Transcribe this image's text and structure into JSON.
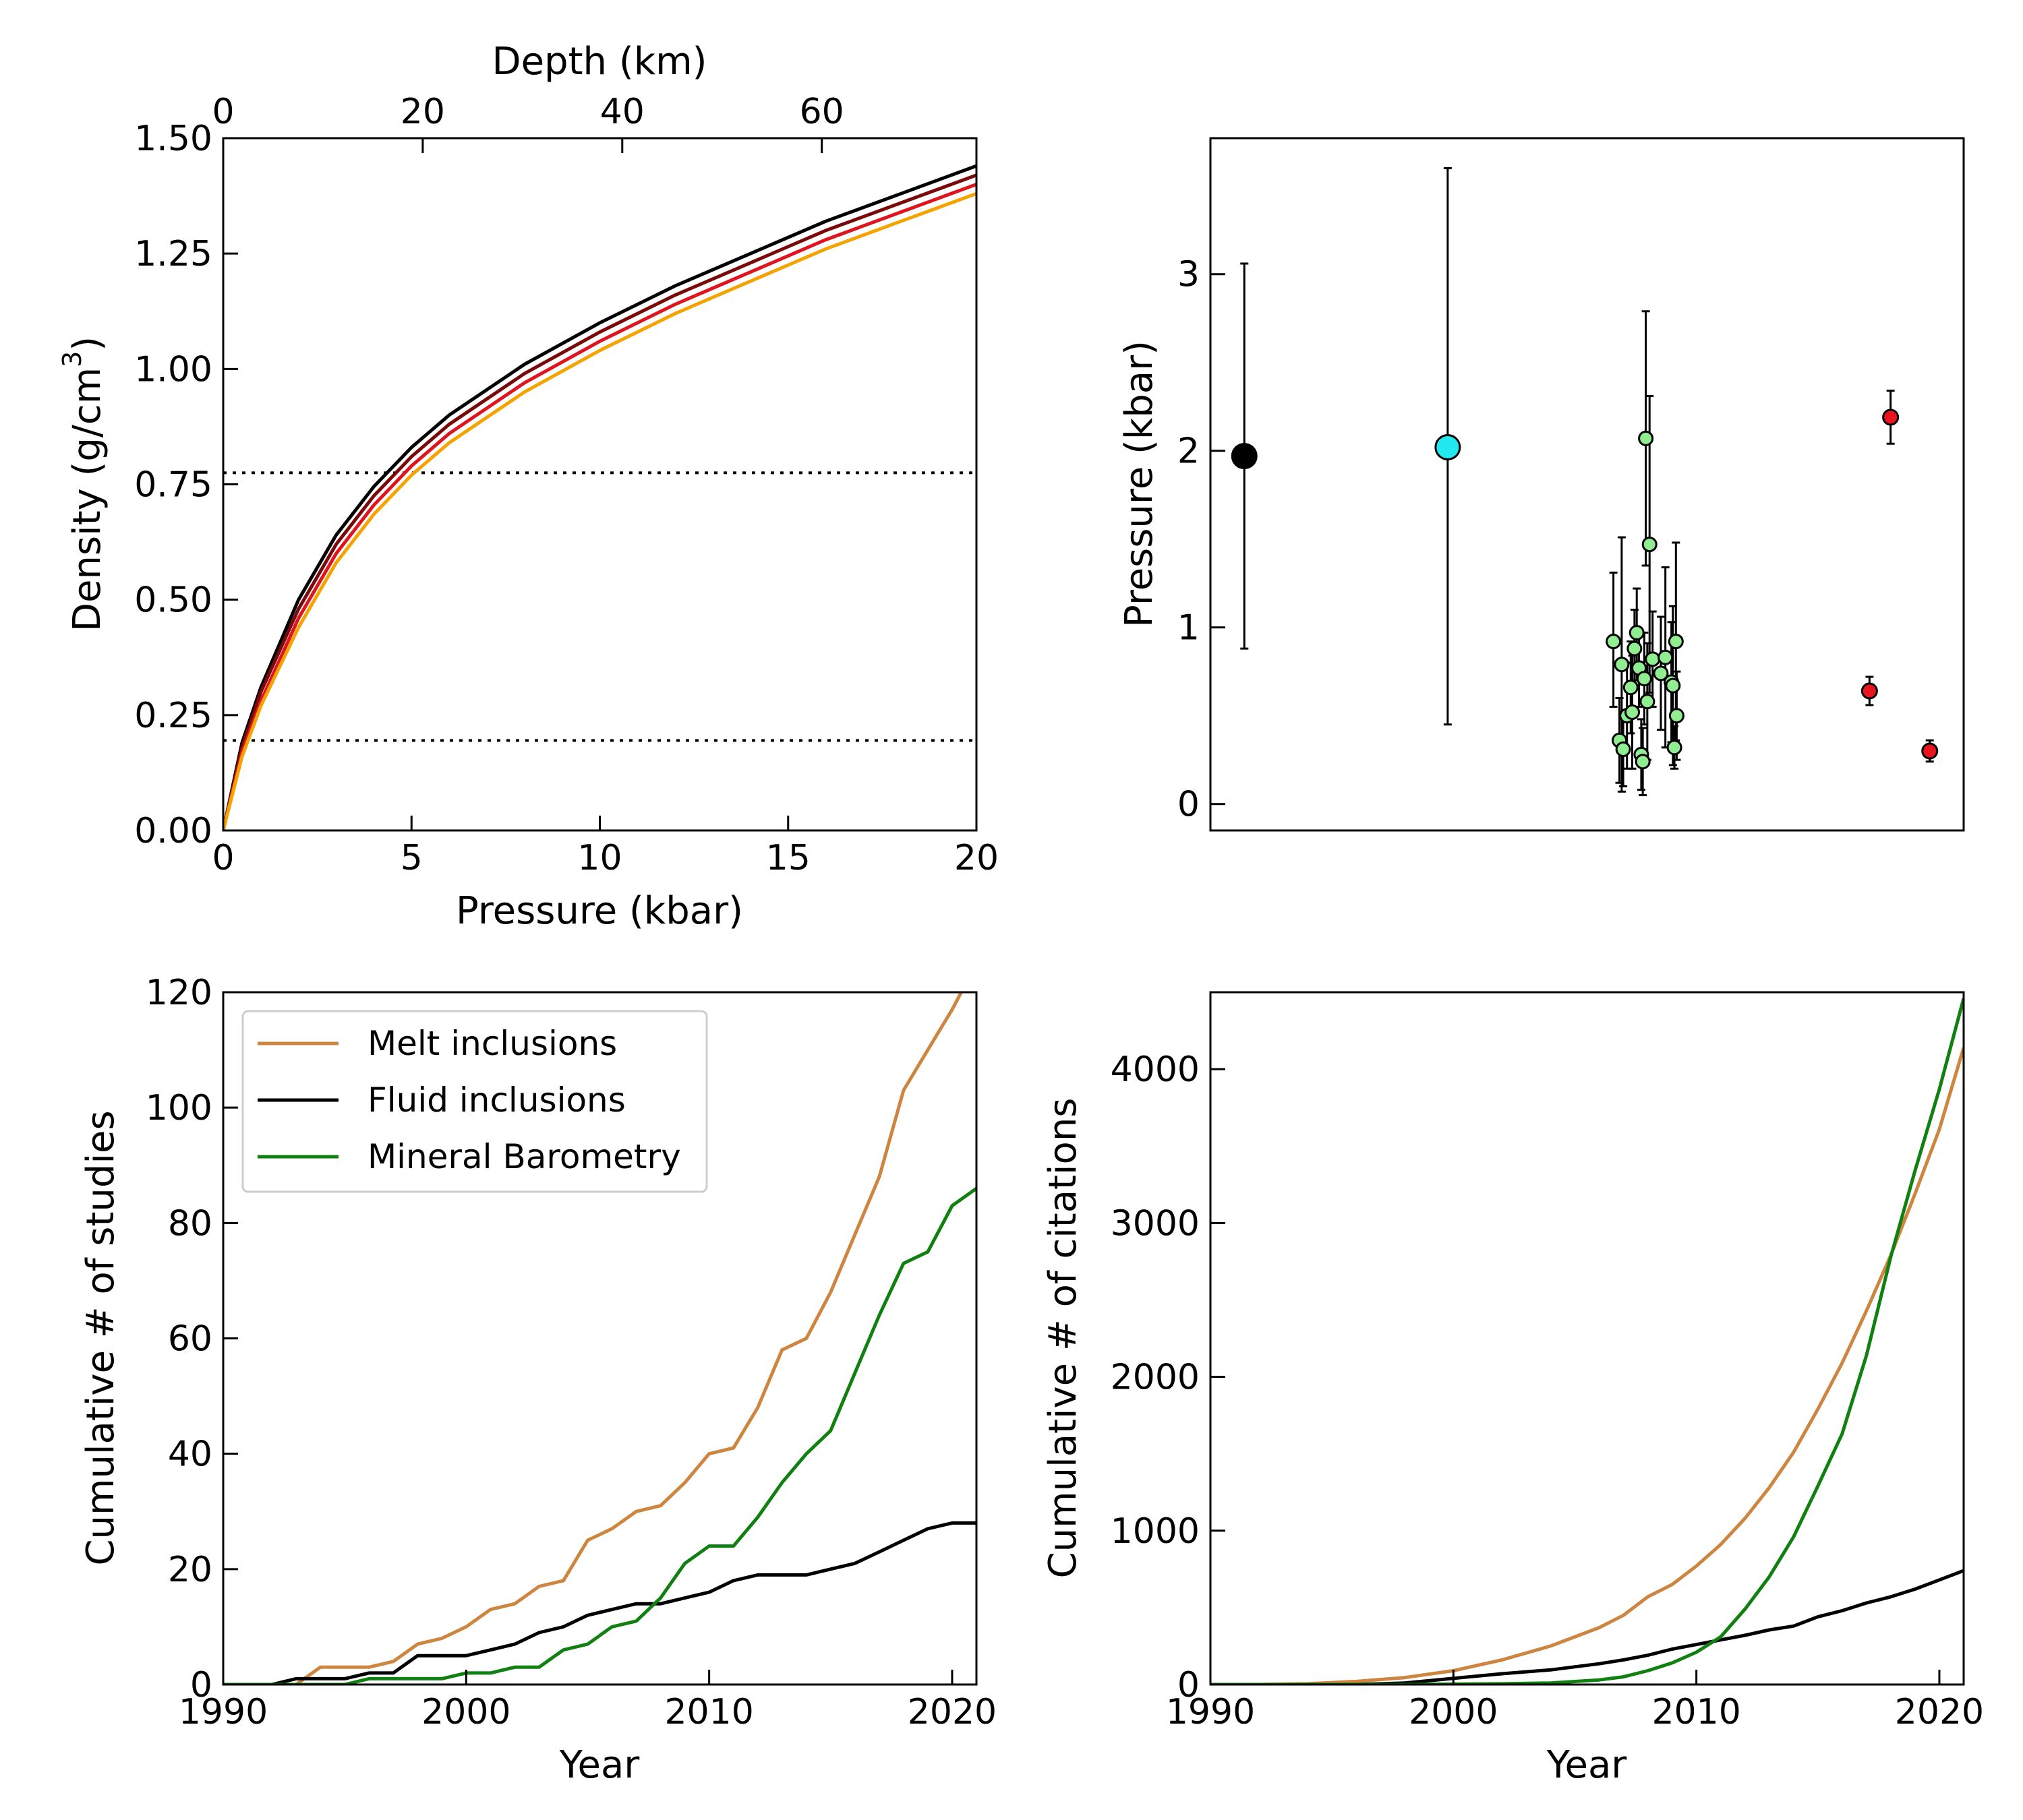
{
  "chart_data": [
    {
      "type": "line",
      "panel": "top-left",
      "xlabel": "Pressure (kbar)",
      "ylabel": "Density (g/cm",
      "ylabel_sup": "3",
      "ylabel_close": ")",
      "x2label": "Depth (km)",
      "xlim": [
        0,
        20
      ],
      "ylim": [
        0,
        1.5
      ],
      "x2lim": [
        0,
        75.5
      ],
      "xticks": [
        0,
        5,
        10,
        15,
        20
      ],
      "xtick_labels": [
        "0",
        "5",
        "10",
        "15",
        "20"
      ],
      "yticks": [
        0,
        0.25,
        0.5,
        0.75,
        1.0,
        1.25,
        1.5
      ],
      "ytick_labels": [
        "0.00",
        "0.25",
        "0.50",
        "0.75",
        "1.00",
        "1.25",
        "1.50"
      ],
      "x2ticks": [
        0,
        20,
        40,
        60
      ],
      "x2tick_labels": [
        "0",
        "20",
        "40",
        "60"
      ],
      "hlines": [
        0.775,
        0.195
      ],
      "series": [
        {
          "color": "#000000",
          "x": [
            0,
            0.5,
            1,
            2,
            3,
            4,
            5,
            6,
            8,
            10,
            12,
            14,
            16,
            18,
            20
          ],
          "y": [
            0,
            0.19,
            0.31,
            0.5,
            0.64,
            0.745,
            0.83,
            0.9,
            1.01,
            1.1,
            1.18,
            1.25,
            1.32,
            1.38,
            1.44
          ]
        },
        {
          "color": "#7a0a0a",
          "x": [
            0,
            0.5,
            1,
            2,
            3,
            4,
            5,
            6,
            8,
            10,
            12,
            14,
            16,
            18,
            20
          ],
          "y": [
            0,
            0.18,
            0.3,
            0.48,
            0.62,
            0.725,
            0.81,
            0.88,
            0.99,
            1.08,
            1.16,
            1.23,
            1.3,
            1.36,
            1.42
          ]
        },
        {
          "color": "#e0141e",
          "x": [
            0,
            0.5,
            1,
            2,
            3,
            4,
            5,
            6,
            8,
            10,
            12,
            14,
            16,
            18,
            20
          ],
          "y": [
            0,
            0.17,
            0.28,
            0.46,
            0.6,
            0.705,
            0.79,
            0.86,
            0.97,
            1.06,
            1.14,
            1.21,
            1.28,
            1.34,
            1.4
          ]
        },
        {
          "color": "#f5a300",
          "x": [
            0,
            0.5,
            1,
            2,
            3,
            4,
            5,
            6,
            8,
            10,
            12,
            14,
            16,
            18,
            20
          ],
          "y": [
            0,
            0.16,
            0.27,
            0.44,
            0.58,
            0.685,
            0.77,
            0.84,
            0.95,
            1.04,
            1.12,
            1.19,
            1.26,
            1.32,
            1.38
          ]
        }
      ]
    },
    {
      "type": "scatter",
      "panel": "top-right",
      "ylabel": "Pressure (kbar)",
      "xlim": [
        0,
        100
      ],
      "ylim": [
        -0.15,
        3.77
      ],
      "yticks": [
        0,
        1,
        2,
        3
      ],
      "ytick_labels": [
        "0",
        "1",
        "2",
        "3"
      ],
      "series": [
        {
          "color": "#000000",
          "size": 18,
          "points": [
            {
              "x": 4.5,
              "y": 1.97,
              "lo": 0.88,
              "hi": 3.06
            }
          ]
        },
        {
          "color": "#22e8f0",
          "size": 18,
          "points": [
            {
              "x": 31.5,
              "y": 2.02,
              "lo": 0.45,
              "hi": 3.6
            }
          ]
        },
        {
          "color": "#90ee90",
          "size": 10,
          "points": [
            {
              "x": 53.5,
              "y": 0.92,
              "lo": 0.55,
              "hi": 1.31
            },
            {
              "x": 54.3,
              "y": 0.36,
              "lo": 0.12,
              "hi": 0.6
            },
            {
              "x": 54.6,
              "y": 0.79,
              "lo": 0.07,
              "hi": 1.51
            },
            {
              "x": 54.8,
              "y": 0.31,
              "lo": 0.1,
              "hi": 0.52
            },
            {
              "x": 55.3,
              "y": 0.5,
              "lo": 0.2,
              "hi": 0.8
            },
            {
              "x": 55.8,
              "y": 0.66,
              "lo": 0.4,
              "hi": 0.92
            },
            {
              "x": 56.0,
              "y": 0.52,
              "lo": 0.2,
              "hi": 0.84
            },
            {
              "x": 56.3,
              "y": 0.88,
              "lo": 0.65,
              "hi": 1.1
            },
            {
              "x": 56.6,
              "y": 0.97,
              "lo": 0.7,
              "hi": 1.22
            },
            {
              "x": 56.9,
              "y": 0.77,
              "lo": 0.55,
              "hi": 0.99
            },
            {
              "x": 57.2,
              "y": 0.28,
              "lo": 0.08,
              "hi": 0.48
            },
            {
              "x": 57.4,
              "y": 0.24,
              "lo": 0.05,
              "hi": 0.43
            },
            {
              "x": 57.6,
              "y": 0.71,
              "lo": 0.45,
              "hi": 0.97
            },
            {
              "x": 57.8,
              "y": 2.07,
              "lo": 1.35,
              "hi": 2.79
            },
            {
              "x": 58.0,
              "y": 0.58,
              "lo": 0.25,
              "hi": 0.91
            },
            {
              "x": 58.3,
              "y": 1.47,
              "lo": 0.63,
              "hi": 2.31
            },
            {
              "x": 58.7,
              "y": 0.82,
              "lo": 0.55,
              "hi": 1.09
            },
            {
              "x": 59.8,
              "y": 0.74,
              "lo": 0.42,
              "hi": 1.06
            },
            {
              "x": 60.4,
              "y": 0.83,
              "lo": 0.32,
              "hi": 1.34
            },
            {
              "x": 61.2,
              "y": 0.69,
              "lo": 0.35,
              "hi": 1.03
            },
            {
              "x": 61.4,
              "y": 0.67,
              "lo": 0.22,
              "hi": 1.12
            },
            {
              "x": 61.6,
              "y": 0.32,
              "lo": 0.2,
              "hi": 0.44
            },
            {
              "x": 61.8,
              "y": 0.92,
              "lo": 0.36,
              "hi": 1.48
            },
            {
              "x": 61.9,
              "y": 0.5,
              "lo": 0.25,
              "hi": 0.75
            }
          ]
        },
        {
          "color": "#e8141e",
          "size": 11,
          "points": [
            {
              "x": 87.5,
              "y": 0.64,
              "lo": 0.56,
              "hi": 0.72
            },
            {
              "x": 90.3,
              "y": 2.19,
              "lo": 2.04,
              "hi": 2.34
            },
            {
              "x": 95.5,
              "y": 0.3,
              "lo": 0.24,
              "hi": 0.36
            }
          ]
        }
      ]
    },
    {
      "type": "line",
      "panel": "bottom-left",
      "xlabel": "Year",
      "ylabel": "Cumulative # of studies",
      "xlim": [
        1990,
        2021
      ],
      "ylim": [
        0,
        120
      ],
      "xticks": [
        1990,
        2000,
        2010,
        2020
      ],
      "xtick_labels": [
        "1990",
        "2000",
        "2010",
        "2020"
      ],
      "yticks": [
        0,
        20,
        40,
        60,
        80,
        100,
        120
      ],
      "ytick_labels": [
        "0",
        "20",
        "40",
        "60",
        "80",
        "100",
        "120"
      ],
      "legend": "top-left",
      "series": [
        {
          "name": "Melt inclusions",
          "color": "#cd853f",
          "x": [
            1990,
            1991,
            1992,
            1993,
            1994,
            1995,
            1996,
            1997,
            1998,
            1999,
            2000,
            2001,
            2002,
            2003,
            2004,
            2005,
            2006,
            2007,
            2008,
            2009,
            2010,
            2011,
            2012,
            2013,
            2014,
            2015,
            2016,
            2017,
            2018,
            2019,
            2020,
            2021
          ],
          "y": [
            0,
            0,
            0,
            0,
            3,
            3,
            3,
            4,
            7,
            8,
            10,
            13,
            14,
            17,
            18,
            25,
            27,
            30,
            31,
            35,
            40,
            41,
            48,
            58,
            60,
            68,
            78,
            88,
            103,
            110,
            117,
            125
          ]
        },
        {
          "name": "Fluid inclusions",
          "color": "#000000",
          "x": [
            1990,
            1991,
            1992,
            1993,
            1994,
            1995,
            1996,
            1997,
            1998,
            1999,
            2000,
            2001,
            2002,
            2003,
            2004,
            2005,
            2006,
            2007,
            2008,
            2009,
            2010,
            2011,
            2012,
            2013,
            2014,
            2015,
            2016,
            2017,
            2018,
            2019,
            2020,
            2021
          ],
          "y": [
            0,
            0,
            0,
            1,
            1,
            1,
            2,
            2,
            5,
            5,
            5,
            6,
            7,
            9,
            10,
            12,
            13,
            14,
            14,
            15,
            16,
            18,
            19,
            19,
            19,
            20,
            21,
            23,
            25,
            27,
            28,
            28
          ]
        },
        {
          "name": "Mineral Barometry",
          "color": "#108010",
          "x": [
            1990,
            1991,
            1992,
            1993,
            1994,
            1995,
            1996,
            1997,
            1998,
            1999,
            2000,
            2001,
            2002,
            2003,
            2004,
            2005,
            2006,
            2007,
            2008,
            2009,
            2010,
            2011,
            2012,
            2013,
            2014,
            2015,
            2016,
            2017,
            2018,
            2019,
            2020,
            2021
          ],
          "y": [
            0,
            0,
            0,
            0,
            0,
            0,
            1,
            1,
            1,
            1,
            2,
            2,
            3,
            3,
            6,
            7,
            10,
            11,
            15,
            21,
            24,
            24,
            29,
            35,
            40,
            44,
            54,
            64,
            73,
            75,
            83,
            86
          ]
        }
      ]
    },
    {
      "type": "line",
      "panel": "bottom-right",
      "xlabel": "Year",
      "ylabel": "Cumulative # of citations",
      "xlim": [
        1990,
        2021
      ],
      "ylim": [
        0,
        4500
      ],
      "xticks": [
        1990,
        2000,
        2010,
        2020
      ],
      "xtick_labels": [
        "1990",
        "2000",
        "2010",
        "2020"
      ],
      "yticks": [
        0,
        1000,
        2000,
        3000,
        4000
      ],
      "ytick_labels": [
        "0",
        "1000",
        "2000",
        "3000",
        "4000"
      ],
      "series": [
        {
          "color": "#cd853f",
          "x": [
            1990,
            1992,
            1994,
            1996,
            1998,
            2000,
            2002,
            2004,
            2006,
            2007,
            2008,
            2009,
            2010,
            2011,
            2012,
            2013,
            2014,
            2015,
            2016,
            2017,
            2018,
            2019,
            2020,
            2021
          ],
          "y": [
            0,
            0,
            5,
            20,
            45,
            90,
            160,
            250,
            370,
            450,
            570,
            650,
            770,
            910,
            1080,
            1280,
            1510,
            1790,
            2090,
            2430,
            2790,
            3190,
            3610,
            4140
          ]
        },
        {
          "color": "#000000",
          "x": [
            1990,
            1992,
            1994,
            1996,
            1998,
            2000,
            2002,
            2004,
            2006,
            2007,
            2008,
            2009,
            2010,
            2011,
            2012,
            2013,
            2014,
            2015,
            2016,
            2017,
            2018,
            2019,
            2020,
            2021
          ],
          "y": [
            0,
            0,
            0,
            0,
            10,
            40,
            70,
            95,
            135,
            160,
            190,
            230,
            260,
            290,
            320,
            355,
            380,
            440,
            480,
            530,
            570,
            620,
            680,
            740
          ]
        },
        {
          "color": "#108010",
          "x": [
            1990,
            1994,
            1998,
            2002,
            2004,
            2006,
            2007,
            2008,
            2009,
            2010,
            2011,
            2012,
            2013,
            2014,
            2015,
            2016,
            2017,
            2018,
            2019,
            2020,
            2021
          ],
          "y": [
            0,
            0,
            0,
            5,
            10,
            30,
            50,
            90,
            140,
            210,
            310,
            490,
            700,
            960,
            1290,
            1630,
            2140,
            2780,
            3340,
            3870,
            4460
          ]
        }
      ]
    }
  ]
}
